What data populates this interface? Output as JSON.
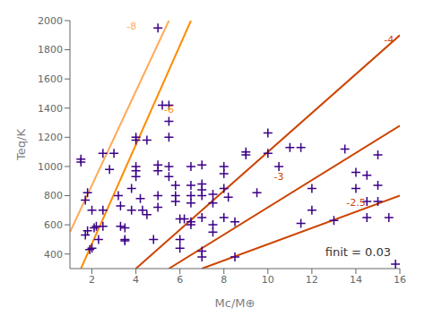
{
  "chart_data": {
    "type": "scatter",
    "xlabel": "Mc/M⊕",
    "ylabel": "Teq/K",
    "xlim": [
      1,
      16
    ],
    "ylim": [
      300,
      2000
    ],
    "xticks": [
      2,
      4,
      6,
      8,
      10,
      12,
      14,
      16
    ],
    "yticks": [
      400,
      600,
      800,
      1000,
      1200,
      1400,
      1600,
      1800,
      2000
    ],
    "grid": false,
    "series": [
      {
        "type": "line",
        "color": "#FFAA55",
        "line_style": "solid",
        "x": [
          1.0,
          5.5
        ],
        "values": [
          550,
          2000
        ]
      },
      {
        "type": "line",
        "color": "#FF8C00",
        "line_style": "solid",
        "x": [
          1.5,
          6.5
        ],
        "values": [
          300,
          2000
        ]
      },
      {
        "type": "line",
        "color": "#CC4400",
        "line_style": "solid",
        "x": [
          4.0,
          16.0
        ],
        "values": [
          300,
          1900
        ]
      },
      {
        "type": "line",
        "color": "#CC4400",
        "line_style": "solid",
        "x": [
          5.5,
          16.0
        ],
        "values": [
          300,
          1280
        ]
      },
      {
        "type": "line",
        "color": "#CC4400",
        "line_style": "solid",
        "x": [
          7.0,
          16.0
        ],
        "values": [
          300,
          800
        ]
      },
      {
        "type": "scatter",
        "color": "#3B0086",
        "marker": "+",
        "x": [
          1.5,
          1.5,
          1.7,
          1.7,
          1.8,
          1.9,
          2.0,
          2.1,
          2.0,
          1.8,
          2.2,
          2.3,
          2.5,
          2.5,
          2.5,
          2.8,
          3.0,
          3.2,
          3.3,
          3.3,
          3.5,
          3.5,
          3.5,
          3.8,
          3.8,
          4.0,
          4.0,
          4.0,
          4.0,
          4.0,
          4.2,
          4.3,
          4.5,
          4.5,
          4.8,
          5.0,
          5.0,
          5.0,
          5.0,
          5.0,
          5.2,
          5.5,
          5.5,
          5.5,
          5.5,
          5.5,
          5.8,
          5.8,
          5.8,
          6.0,
          6.0,
          6.0,
          6.2,
          6.5,
          6.5,
          6.5,
          6.5,
          6.5,
          6.5,
          7.0,
          7.0,
          7.0,
          7.0,
          7.0,
          7.0,
          7.0,
          7.5,
          7.5,
          7.5,
          7.5,
          8.0,
          8.0,
          8.0,
          8.2,
          8.0,
          8.5,
          8.5,
          9.0,
          9.0,
          9.5,
          10.0,
          10.0,
          10.5,
          11.0,
          11.5,
          11.5,
          12.0,
          12.0,
          13.0,
          13.5,
          14.0,
          14.0,
          14.5,
          14.5,
          14.5,
          15.0,
          15.0,
          15.0,
          15.5,
          15.8
        ],
        "values": [
          1050,
          1030,
          770,
          530,
          560,
          430,
          440,
          580,
          700,
          820,
          590,
          500,
          590,
          700,
          1090,
          980,
          1090,
          800,
          730,
          590,
          580,
          500,
          490,
          700,
          850,
          1000,
          970,
          930,
          1200,
          1180,
          780,
          700,
          1180,
          670,
          500,
          970,
          1010,
          800,
          720,
          1950,
          1420,
          1420,
          1310,
          1200,
          1000,
          930,
          870,
          800,
          760,
          640,
          500,
          440,
          640,
          1000,
          870,
          800,
          750,
          620,
          600,
          1010,
          880,
          840,
          800,
          650,
          420,
          380,
          810,
          750,
          600,
          550,
          1000,
          950,
          850,
          790,
          650,
          620,
          380,
          1100,
          1080,
          820,
          1230,
          1090,
          1000,
          1130,
          1130,
          610,
          850,
          700,
          630,
          1120,
          960,
          850,
          940,
          760,
          650,
          1080,
          870,
          760,
          650,
          330
        ]
      }
    ],
    "annotations": [
      {
        "text": "-8",
        "x": 3.8,
        "y": 1960,
        "color": "#FFAA55"
      },
      {
        "text": "-6",
        "x": 5.5,
        "y": 1390,
        "color": "#FF8C00"
      },
      {
        "text": "-4",
        "x": 15.5,
        "y": 1870,
        "color": "#CC4400"
      },
      {
        "text": "-3",
        "x": 10.5,
        "y": 930,
        "color": "#CC4400"
      },
      {
        "text": "-2.5",
        "x": 14.0,
        "y": 755,
        "color": "#CC4400"
      },
      {
        "text": "finit = 0.03"
      }
    ]
  }
}
